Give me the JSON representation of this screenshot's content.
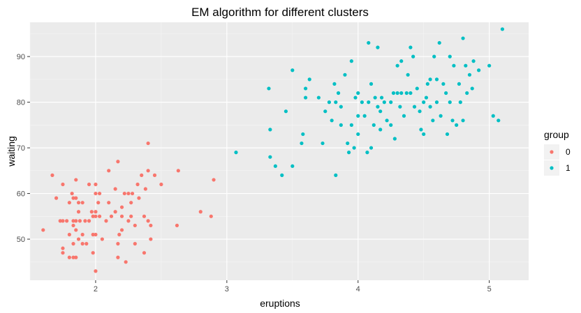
{
  "chart_data": {
    "type": "scatter",
    "title": "EM algorithm for different clusters",
    "xlabel": "eruptions",
    "ylabel": "waiting",
    "xlim": [
      1.5,
      5.3
    ],
    "ylim": [
      41,
      97.5
    ],
    "x_ticks": [
      2,
      3,
      4,
      5
    ],
    "y_ticks": [
      50,
      60,
      70,
      80,
      90
    ],
    "grid": true,
    "legend": {
      "title": "group",
      "position": "right"
    },
    "series": [
      {
        "name": "0",
        "color": "#F8766D",
        "points": [
          [
            1.6,
            52
          ],
          [
            1.67,
            64
          ],
          [
            1.7,
            59
          ],
          [
            1.73,
            54
          ],
          [
            1.75,
            62
          ],
          [
            1.75,
            54
          ],
          [
            1.75,
            47
          ],
          [
            1.75,
            48
          ],
          [
            1.78,
            54
          ],
          [
            1.8,
            58
          ],
          [
            1.8,
            51
          ],
          [
            1.8,
            46
          ],
          [
            1.82,
            60
          ],
          [
            1.83,
            59
          ],
          [
            1.83,
            54
          ],
          [
            1.83,
            53
          ],
          [
            1.83,
            49
          ],
          [
            1.83,
            46
          ],
          [
            1.85,
            63
          ],
          [
            1.85,
            59
          ],
          [
            1.85,
            54
          ],
          [
            1.85,
            52
          ],
          [
            1.85,
            46
          ],
          [
            1.87,
            58
          ],
          [
            1.87,
            56
          ],
          [
            1.87,
            50
          ],
          [
            1.88,
            54
          ],
          [
            1.9,
            58
          ],
          [
            1.9,
            51
          ],
          [
            1.9,
            49
          ],
          [
            1.92,
            54
          ],
          [
            1.93,
            49
          ],
          [
            1.95,
            62
          ],
          [
            1.95,
            54
          ],
          [
            1.97,
            56
          ],
          [
            1.98,
            55
          ],
          [
            1.98,
            51
          ],
          [
            1.98,
            47
          ],
          [
            2.0,
            62
          ],
          [
            2.0,
            60
          ],
          [
            2.0,
            56
          ],
          [
            2.0,
            55
          ],
          [
            2.0,
            51
          ],
          [
            2.0,
            43
          ],
          [
            2.02,
            58
          ],
          [
            2.03,
            60
          ],
          [
            2.03,
            55
          ],
          [
            2.05,
            50
          ],
          [
            2.08,
            54
          ],
          [
            2.1,
            65
          ],
          [
            2.1,
            58
          ],
          [
            2.12,
            55
          ],
          [
            2.15,
            61
          ],
          [
            2.15,
            56
          ],
          [
            2.17,
            67
          ],
          [
            2.17,
            49
          ],
          [
            2.17,
            46
          ],
          [
            2.18,
            51
          ],
          [
            2.2,
            57
          ],
          [
            2.2,
            55
          ],
          [
            2.2,
            52
          ],
          [
            2.22,
            60
          ],
          [
            2.23,
            45
          ],
          [
            2.25,
            60
          ],
          [
            2.25,
            54
          ],
          [
            2.27,
            58
          ],
          [
            2.27,
            55
          ],
          [
            2.28,
            60
          ],
          [
            2.3,
            53
          ],
          [
            2.3,
            49
          ],
          [
            2.32,
            62
          ],
          [
            2.33,
            59
          ],
          [
            2.35,
            64
          ],
          [
            2.37,
            55
          ],
          [
            2.37,
            47
          ],
          [
            2.38,
            61
          ],
          [
            2.4,
            71
          ],
          [
            2.4,
            65
          ],
          [
            2.4,
            54
          ],
          [
            2.42,
            50
          ],
          [
            2.42,
            53
          ],
          [
            2.45,
            64
          ],
          [
            2.5,
            62
          ],
          [
            2.62,
            53
          ],
          [
            2.63,
            65
          ],
          [
            2.8,
            56
          ],
          [
            2.88,
            55
          ],
          [
            2.9,
            63
          ]
        ]
      },
      {
        "name": "1",
        "color": "#00BFC4",
        "points": [
          [
            3.07,
            69
          ],
          [
            3.32,
            83
          ],
          [
            3.33,
            74
          ],
          [
            3.33,
            68
          ],
          [
            3.37,
            66
          ],
          [
            3.42,
            64
          ],
          [
            3.45,
            78
          ],
          [
            3.5,
            87
          ],
          [
            3.5,
            66
          ],
          [
            3.57,
            71
          ],
          [
            3.58,
            73
          ],
          [
            3.6,
            83
          ],
          [
            3.6,
            81
          ],
          [
            3.63,
            85
          ],
          [
            3.7,
            81
          ],
          [
            3.73,
            71
          ],
          [
            3.75,
            78
          ],
          [
            3.78,
            80
          ],
          [
            3.8,
            76
          ],
          [
            3.82,
            84
          ],
          [
            3.83,
            64
          ],
          [
            3.83,
            80
          ],
          [
            3.85,
            82
          ],
          [
            3.87,
            79
          ],
          [
            3.87,
            75
          ],
          [
            3.9,
            86
          ],
          [
            3.92,
            71
          ],
          [
            3.93,
            69
          ],
          [
            3.95,
            89
          ],
          [
            3.95,
            75
          ],
          [
            3.97,
            70
          ],
          [
            3.98,
            81
          ],
          [
            4.0,
            82
          ],
          [
            4.0,
            77
          ],
          [
            4.0,
            73
          ],
          [
            4.03,
            80
          ],
          [
            4.05,
            77
          ],
          [
            4.07,
            69
          ],
          [
            4.08,
            80
          ],
          [
            4.08,
            93
          ],
          [
            4.1,
            84
          ],
          [
            4.1,
            70
          ],
          [
            4.12,
            75
          ],
          [
            4.13,
            81
          ],
          [
            4.15,
            92
          ],
          [
            4.15,
            79
          ],
          [
            4.17,
            78
          ],
          [
            4.17,
            74
          ],
          [
            4.18,
            81
          ],
          [
            4.2,
            80
          ],
          [
            4.22,
            76
          ],
          [
            4.25,
            80
          ],
          [
            4.25,
            75
          ],
          [
            4.27,
            82
          ],
          [
            4.28,
            72
          ],
          [
            4.3,
            88
          ],
          [
            4.3,
            82
          ],
          [
            4.32,
            79
          ],
          [
            4.33,
            89
          ],
          [
            4.33,
            82
          ],
          [
            4.35,
            77
          ],
          [
            4.37,
            82
          ],
          [
            4.38,
            86
          ],
          [
            4.4,
            92
          ],
          [
            4.4,
            82
          ],
          [
            4.42,
            90
          ],
          [
            4.43,
            79
          ],
          [
            4.45,
            83
          ],
          [
            4.47,
            78
          ],
          [
            4.48,
            74
          ],
          [
            4.5,
            80
          ],
          [
            4.5,
            73
          ],
          [
            4.52,
            81
          ],
          [
            4.53,
            84
          ],
          [
            4.55,
            85
          ],
          [
            4.55,
            79
          ],
          [
            4.57,
            76
          ],
          [
            4.58,
            90
          ],
          [
            4.6,
            80
          ],
          [
            4.6,
            85
          ],
          [
            4.62,
            93
          ],
          [
            4.63,
            77
          ],
          [
            4.65,
            84
          ],
          [
            4.67,
            82
          ],
          [
            4.68,
            73
          ],
          [
            4.7,
            90
          ],
          [
            4.7,
            80
          ],
          [
            4.72,
            76
          ],
          [
            4.73,
            88
          ],
          [
            4.75,
            75
          ],
          [
            4.77,
            84
          ],
          [
            4.78,
            80
          ],
          [
            4.8,
            94
          ],
          [
            4.8,
            76
          ],
          [
            4.82,
            88
          ],
          [
            4.83,
            82
          ],
          [
            4.85,
            86
          ],
          [
            4.87,
            83
          ],
          [
            4.88,
            89
          ],
          [
            4.92,
            87
          ],
          [
            5.0,
            88
          ],
          [
            5.03,
            77
          ],
          [
            5.07,
            76
          ],
          [
            5.1,
            96
          ]
        ]
      }
    ]
  }
}
